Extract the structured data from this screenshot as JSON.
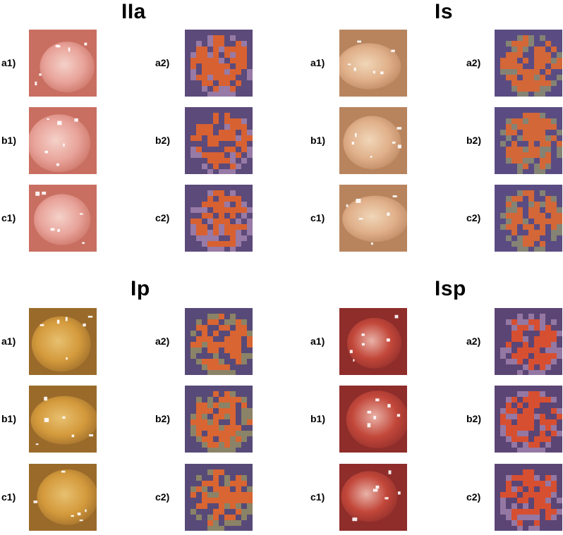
{
  "figure": {
    "groups": [
      {
        "id": "IIa",
        "title": "IIa",
        "rows": [
          {
            "row": "a",
            "left_label": "a1)",
            "right_label": "a2)"
          },
          {
            "row": "b",
            "left_label": "b1)",
            "right_label": "b2)"
          },
          {
            "row": "c",
            "left_label": "c1)",
            "right_label": "c2)"
          }
        ],
        "palette": {
          "photo": [
            "#e8a39a",
            "#c96f61",
            "#f4d1c8"
          ],
          "map": [
            "#5b4a7a",
            "#e5642a",
            "#c9a3c9"
          ]
        }
      },
      {
        "id": "Is",
        "title": "Is",
        "rows": [
          {
            "row": "a",
            "left_label": "a1)",
            "right_label": "a2)"
          },
          {
            "row": "b",
            "left_label": "b1)",
            "right_label": "b2)"
          },
          {
            "row": "c",
            "left_label": "c1)",
            "right_label": "c2)"
          }
        ],
        "palette": {
          "photo": [
            "#e0b08a",
            "#b8845e",
            "#f0d6b8"
          ],
          "map": [
            "#5a4c82",
            "#e06a30",
            "#a7b06a"
          ]
        }
      },
      {
        "id": "Ip",
        "title": "Ip",
        "rows": [
          {
            "row": "a",
            "left_label": "a1)",
            "right_label": "a2)"
          },
          {
            "row": "b",
            "left_label": "b1)",
            "right_label": "b2)"
          },
          {
            "row": "c",
            "left_label": "c1)",
            "right_label": "c2)"
          }
        ],
        "palette": {
          "photo": [
            "#d49a3c",
            "#9a6a2a",
            "#e7c070"
          ],
          "map": [
            "#574a78",
            "#e8682a",
            "#b6b25a"
          ]
        }
      },
      {
        "id": "Isp",
        "title": "Isp",
        "rows": [
          {
            "row": "a",
            "left_label": "a1)",
            "right_label": "a2)"
          },
          {
            "row": "b",
            "left_label": "b1)",
            "right_label": "b2)"
          },
          {
            "row": "c",
            "left_label": "c1)",
            "right_label": "c2)"
          }
        ],
        "palette": {
          "photo": [
            "#c2473a",
            "#8e2d2a",
            "#e9b2a8"
          ],
          "map": [
            "#5b4575",
            "#e4502a",
            "#c2a2c8"
          ]
        }
      }
    ]
  }
}
